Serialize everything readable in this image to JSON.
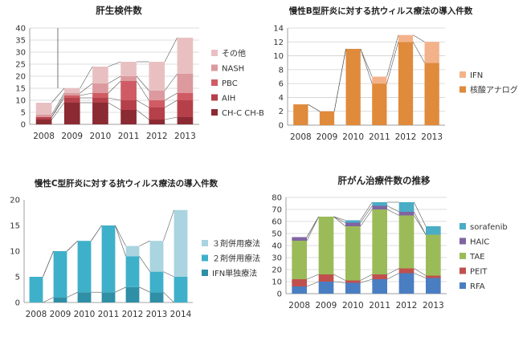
{
  "chart_data": [
    {
      "type": "bar",
      "stacked": true,
      "title": "肝生検件数",
      "categories": [
        "2008",
        "2009",
        "2010",
        "2011",
        "2012",
        "2013"
      ],
      "ylim": [
        0,
        40
      ],
      "yticks": [
        0,
        5,
        10,
        15,
        20,
        25,
        30,
        35,
        40
      ],
      "grid": true,
      "legend": "right",
      "series": [
        {
          "name": "CH-C CH-B",
          "color": "#8b2a33",
          "values": [
            2,
            9,
            9,
            6,
            2,
            3
          ]
        },
        {
          "name": "AIH",
          "color": "#b5404a",
          "values": [
            1,
            2,
            2,
            4,
            5,
            7
          ]
        },
        {
          "name": "PBC",
          "color": "#cf5c64",
          "values": [
            0,
            1,
            2,
            8,
            3,
            3
          ]
        },
        {
          "name": "NASH",
          "color": "#dc9a9e",
          "values": [
            1,
            1,
            4,
            2,
            4,
            8
          ]
        },
        {
          "name": "その他",
          "color": "#e9c0c2",
          "values": [
            5,
            2,
            7,
            6,
            12,
            15
          ]
        }
      ]
    },
    {
      "type": "bar",
      "stacked": true,
      "title": "慢性B型肝炎に対する抗ウィルス療法の導入件数",
      "categories": [
        "2008",
        "2009",
        "2010",
        "2011",
        "2012",
        "2013"
      ],
      "ylim": [
        0,
        14
      ],
      "yticks": [
        0,
        2,
        4,
        6,
        8,
        10,
        12,
        14
      ],
      "grid": true,
      "legend": "right",
      "series": [
        {
          "name": "核酸アナログ",
          "color": "#e08a3c",
          "values": [
            3,
            2,
            11,
            6,
            12,
            9
          ]
        },
        {
          "name": "IFN",
          "color": "#f4b28a",
          "values": [
            0,
            0,
            0,
            1,
            1,
            3
          ]
        }
      ]
    },
    {
      "type": "bar",
      "stacked": true,
      "title": "慢性C型肝炎に対する抗ウィルス療法の導入件数",
      "categories": [
        "2008",
        "2009",
        "2010",
        "2011",
        "2012",
        "2013",
        "2014"
      ],
      "ylim": [
        0,
        20
      ],
      "yticks": [
        0,
        5,
        10,
        15,
        20
      ],
      "grid": false,
      "legend": "right",
      "series": [
        {
          "name": "IFN単独療法",
          "color": "#2e8fa6",
          "values": [
            0,
            1,
            2,
            2,
            3,
            2,
            0
          ]
        },
        {
          "name": "２剤併用療法",
          "color": "#3fb0c9",
          "values": [
            5,
            9,
            10,
            13,
            6,
            4,
            5
          ]
        },
        {
          "name": "３剤併用療法",
          "color": "#a9d4e0",
          "values": [
            0,
            0,
            0,
            0,
            2,
            6,
            13
          ]
        }
      ]
    },
    {
      "type": "bar",
      "stacked": true,
      "title": "肝がん治療件数の推移",
      "categories": [
        "2008",
        "2009",
        "2010",
        "2011",
        "2012",
        "2013"
      ],
      "ylim": [
        0,
        80
      ],
      "yticks": [
        0,
        10,
        20,
        30,
        40,
        50,
        60,
        70,
        80
      ],
      "grid": true,
      "legend": "right",
      "series": [
        {
          "name": "RFA",
          "color": "#4a7ec2",
          "values": [
            6,
            10,
            9,
            12,
            17,
            13
          ]
        },
        {
          "name": "PEIT",
          "color": "#c0504d",
          "values": [
            6,
            6,
            2,
            4,
            4,
            2
          ]
        },
        {
          "name": "TAE",
          "color": "#9bbb59",
          "values": [
            32,
            48,
            45,
            54,
            44,
            34
          ]
        },
        {
          "name": "HAIC",
          "color": "#8064a2",
          "values": [
            3,
            0,
            3,
            3,
            3,
            0
          ]
        },
        {
          "name": "sorafenib",
          "color": "#4bacc6",
          "values": [
            0,
            0,
            2,
            3,
            8,
            7
          ]
        }
      ]
    }
  ]
}
